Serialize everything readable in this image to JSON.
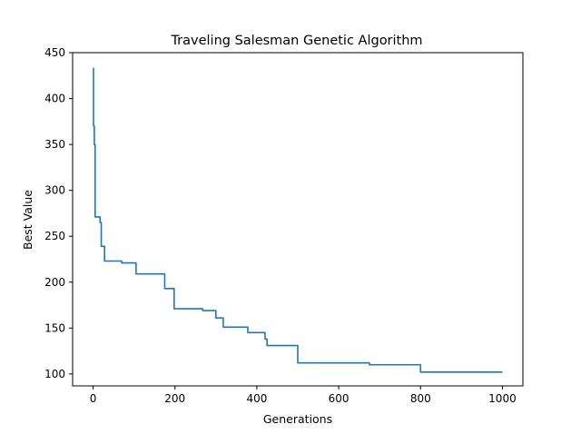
{
  "chart_data": {
    "type": "line",
    "title": "Traveling Salesman Genetic Algorithm",
    "xlabel": "Generations",
    "ylabel": "Best Value",
    "xlim": [
      -50,
      1050
    ],
    "ylim": [
      87,
      450
    ],
    "xticks": [
      0,
      200,
      400,
      600,
      800,
      1000
    ],
    "yticks": [
      100,
      150,
      200,
      250,
      300,
      350,
      400,
      450
    ],
    "grid": false,
    "line_color": "#1f77b4",
    "series": [
      {
        "x": [
          0,
          1,
          1,
          3,
          3,
          5,
          5,
          8,
          8,
          17,
          17,
          20,
          20,
          28,
          28,
          70,
          70,
          105,
          105,
          175,
          175,
          198,
          198,
          268,
          268,
          300,
          300,
          318,
          318,
          378,
          378,
          420,
          420,
          425,
          425,
          500,
          500,
          675,
          675,
          800,
          800,
          1000
        ],
        "y": [
          433,
          433,
          370,
          370,
          350,
          350,
          271,
          271,
          271,
          271,
          265,
          265,
          239,
          239,
          223,
          223,
          221,
          221,
          209,
          209,
          193,
          193,
          171,
          171,
          169,
          169,
          161,
          161,
          151,
          151,
          145,
          145,
          138,
          138,
          131,
          131,
          112,
          112,
          110,
          110,
          102,
          102
        ]
      }
    ]
  }
}
